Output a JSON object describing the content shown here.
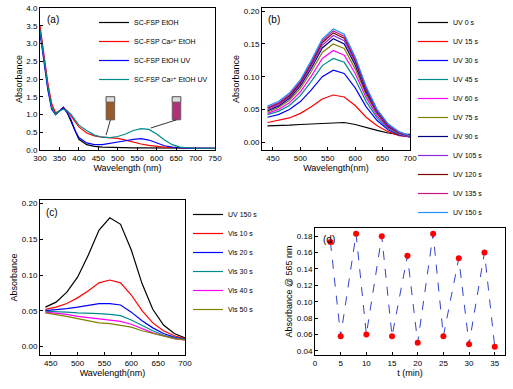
{
  "chart_data": [
    {
      "type": "line",
      "title": "(a)",
      "x_label": "Wavelength (nm)",
      "y_label": "Absorbance",
      "x": [
        300,
        310,
        320,
        330,
        340,
        350,
        360,
        370,
        380,
        390,
        400,
        420,
        440,
        460,
        480,
        500,
        520,
        540,
        560,
        580,
        600,
        620,
        640,
        660,
        680,
        700,
        750
      ],
      "series": [
        {
          "name": "SC-FSP EtOH",
          "color": "#000000",
          "values": [
            3.4,
            2.6,
            1.8,
            1.2,
            1.0,
            1.1,
            1.2,
            1.05,
            0.8,
            0.5,
            0.3,
            0.15,
            0.1,
            0.08,
            0.07,
            0.07,
            0.07,
            0.06,
            0.06,
            0.06,
            0.05,
            0.05,
            0.05,
            0.05,
            0.05,
            0.05,
            0.05
          ]
        },
        {
          "name": "SC-FSP Ca²⁺ EtOH",
          "color": "#ff0000",
          "values": [
            3.5,
            2.7,
            1.9,
            1.3,
            1.05,
            1.1,
            1.2,
            1.1,
            0.95,
            0.8,
            0.65,
            0.48,
            0.4,
            0.36,
            0.35,
            0.33,
            0.28,
            0.22,
            0.17,
            0.13,
            0.1,
            0.08,
            0.07,
            0.06,
            0.06,
            0.05,
            0.05
          ]
        },
        {
          "name": "SC-FSP EtOH UV",
          "color": "#0000ff",
          "values": [
            3.3,
            2.5,
            1.7,
            1.15,
            1.0,
            1.1,
            1.2,
            1.05,
            0.85,
            0.55,
            0.35,
            0.2,
            0.15,
            0.15,
            0.18,
            0.22,
            0.26,
            0.3,
            0.32,
            0.28,
            0.2,
            0.12,
            0.08,
            0.06,
            0.05,
            0.05,
            0.05
          ]
        },
        {
          "name": "SC-FSP Ca²⁺ EtOH UV",
          "color": "#008b8b",
          "values": [
            3.4,
            2.6,
            1.8,
            1.2,
            1.0,
            1.1,
            1.15,
            1.1,
            1.0,
            0.85,
            0.7,
            0.55,
            0.42,
            0.36,
            0.35,
            0.38,
            0.45,
            0.55,
            0.6,
            0.58,
            0.45,
            0.28,
            0.15,
            0.08,
            0.06,
            0.05,
            0.05
          ]
        }
      ],
      "xlim": [
        300,
        750
      ],
      "xticks": [
        300,
        350,
        400,
        450,
        500,
        550,
        600,
        650,
        700,
        750
      ],
      "ylim": [
        0,
        4.0
      ],
      "yticks": [
        {
          "value": 0,
          "label": "0.0"
        },
        0.5,
        {
          "value": 1,
          "label": "1.0"
        },
        1.5,
        {
          "value": 2,
          "label": "2.0"
        },
        2.5,
        {
          "value": 3,
          "label": "3.0"
        },
        3.5,
        {
          "value": 4,
          "label": "4.0"
        }
      ],
      "grid": false,
      "legend": "upper right"
    },
    {
      "type": "line",
      "title": "(b)",
      "x_label": "Wavelength(nm)",
      "y_label": "Absorbance",
      "x": [
        440,
        460,
        480,
        500,
        520,
        540,
        560,
        580,
        600,
        620,
        640,
        660,
        680,
        700
      ],
      "series": [
        {
          "name": "UV 0 s",
          "color": "#000000",
          "values": [
            0.025,
            0.025,
            0.026,
            0.027,
            0.028,
            0.029,
            0.03,
            0.03,
            0.027,
            0.022,
            0.018,
            0.014,
            0.012,
            0.012
          ]
        },
        {
          "name": "UV 15 s",
          "color": "#ff0000",
          "values": [
            0.03,
            0.033,
            0.037,
            0.044,
            0.054,
            0.066,
            0.072,
            0.069,
            0.056,
            0.038,
            0.025,
            0.016,
            0.01,
            0.008
          ]
        },
        {
          "name": "UV 30 s",
          "color": "#0000ff",
          "values": [
            0.038,
            0.042,
            0.05,
            0.062,
            0.08,
            0.1,
            0.11,
            0.105,
            0.083,
            0.054,
            0.033,
            0.019,
            0.011,
            0.008
          ]
        },
        {
          "name": "UV 45 s",
          "color": "#008b8b",
          "values": [
            0.042,
            0.047,
            0.056,
            0.071,
            0.093,
            0.117,
            0.128,
            0.122,
            0.096,
            0.062,
            0.037,
            0.021,
            0.012,
            0.008
          ]
        },
        {
          "name": "UV 60 s",
          "color": "#ff00ff",
          "values": [
            0.044,
            0.05,
            0.06,
            0.077,
            0.101,
            0.128,
            0.14,
            0.133,
            0.105,
            0.068,
            0.04,
            0.022,
            0.013,
            0.008
          ]
        },
        {
          "name": "UV 75 s",
          "color": "#808000",
          "values": [
            0.046,
            0.053,
            0.064,
            0.082,
            0.108,
            0.137,
            0.15,
            0.143,
            0.112,
            0.072,
            0.043,
            0.023,
            0.013,
            0.009
          ]
        },
        {
          "name": "UV 90 s",
          "color": "#000080",
          "values": [
            0.048,
            0.055,
            0.067,
            0.086,
            0.113,
            0.144,
            0.158,
            0.15,
            0.118,
            0.076,
            0.045,
            0.024,
            0.014,
            0.009
          ]
        },
        {
          "name": "UV 105 s",
          "color": "#8a2be2",
          "values": [
            0.05,
            0.057,
            0.069,
            0.089,
            0.117,
            0.148,
            0.163,
            0.155,
            0.122,
            0.079,
            0.046,
            0.025,
            0.014,
            0.009
          ]
        },
        {
          "name": "UV 120 s",
          "color": "#800000",
          "values": [
            0.052,
            0.059,
            0.071,
            0.091,
            0.12,
            0.152,
            0.167,
            0.159,
            0.125,
            0.081,
            0.048,
            0.026,
            0.015,
            0.01
          ]
        },
        {
          "name": "UV 135 s",
          "color": "#c71585",
          "values": [
            0.053,
            0.06,
            0.073,
            0.093,
            0.122,
            0.155,
            0.17,
            0.162,
            0.128,
            0.083,
            0.049,
            0.027,
            0.015,
            0.01
          ]
        },
        {
          "name": "UV 150 s",
          "color": "#1e90ff",
          "values": [
            0.055,
            0.062,
            0.075,
            0.095,
            0.125,
            0.158,
            0.173,
            0.165,
            0.13,
            0.085,
            0.05,
            0.028,
            0.016,
            0.01
          ]
        }
      ],
      "xlim": [
        430,
        700
      ],
      "xticks": [
        450,
        500,
        550,
        600,
        650,
        700
      ],
      "ylim": [
        -0.012,
        0.205
      ],
      "yticks": [
        {
          "value": 0,
          "label": "0.00"
        },
        0.05,
        {
          "value": 0.1,
          "label": "0.10"
        },
        0.15,
        {
          "value": 0.2,
          "label": "0.20"
        }
      ],
      "grid": false,
      "legend": "right"
    },
    {
      "type": "line",
      "title": "(c)",
      "x_label": "Wavelength(nm)",
      "y_label": "Absorbance",
      "x": [
        440,
        460,
        480,
        500,
        520,
        540,
        560,
        580,
        600,
        620,
        640,
        660,
        680,
        700
      ],
      "series": [
        {
          "name": "UV 150 s",
          "color": "#000000",
          "values": [
            0.055,
            0.062,
            0.076,
            0.097,
            0.128,
            0.163,
            0.18,
            0.171,
            0.135,
            0.088,
            0.052,
            0.03,
            0.018,
            0.012
          ]
        },
        {
          "name": "Vis 10 s",
          "color": "#ff0000",
          "values": [
            0.052,
            0.055,
            0.06,
            0.068,
            0.078,
            0.089,
            0.093,
            0.089,
            0.072,
            0.05,
            0.033,
            0.022,
            0.015,
            0.011
          ]
        },
        {
          "name": "Vis 20 s",
          "color": "#0000ff",
          "values": [
            0.05,
            0.051,
            0.053,
            0.055,
            0.058,
            0.06,
            0.06,
            0.058,
            0.048,
            0.036,
            0.026,
            0.018,
            0.013,
            0.01
          ]
        },
        {
          "name": "Vis 30 s",
          "color": "#008b8b",
          "values": [
            0.049,
            0.049,
            0.048,
            0.047,
            0.047,
            0.046,
            0.045,
            0.043,
            0.037,
            0.029,
            0.022,
            0.016,
            0.012,
            0.01
          ]
        },
        {
          "name": "Vis 40 s",
          "color": "#ff00ff",
          "values": [
            0.048,
            0.047,
            0.045,
            0.042,
            0.04,
            0.038,
            0.037,
            0.035,
            0.031,
            0.025,
            0.019,
            0.015,
            0.011,
            0.009
          ]
        },
        {
          "name": "Vis 50 s",
          "color": "#808000",
          "values": [
            0.047,
            0.045,
            0.042,
            0.039,
            0.036,
            0.033,
            0.032,
            0.03,
            0.027,
            0.022,
            0.018,
            0.014,
            0.011,
            0.009
          ]
        }
      ],
      "xlim": [
        430,
        700
      ],
      "xticks": [
        450,
        500,
        550,
        600,
        650,
        700
      ],
      "ylim": [
        -0.012,
        0.205
      ],
      "yticks": [
        {
          "value": 0,
          "label": "0.00"
        },
        0.05,
        {
          "value": 0.1,
          "label": "0.10"
        },
        0.15,
        {
          "value": 0.2,
          "label": "0.20"
        }
      ],
      "grid": false,
      "legend": "right"
    },
    {
      "type": "line",
      "title": "(d)",
      "x_label": "t (min)",
      "y_label": "Absorbance @ 565 nm",
      "x": [
        3,
        5,
        8,
        10,
        13,
        15,
        18,
        20,
        23,
        25,
        28,
        30,
        33,
        35
      ],
      "values": [
        0.173,
        0.058,
        0.183,
        0.06,
        0.18,
        0.058,
        0.156,
        0.05,
        0.183,
        0.058,
        0.153,
        0.048,
        0.16,
        0.045
      ],
      "color": "#3344cc",
      "colors": [
        "#ff0000",
        "#ff0000",
        "#ff0000",
        "#ff0000",
        "#ff0000",
        "#ff0000",
        "#ff0000",
        "#ff0000",
        "#ff0000",
        "#ff0000",
        "#ff0000",
        "#ff0000",
        "#ff0000",
        "#ff0000"
      ],
      "marker": "circle",
      "line_style": "dash",
      "xlim": [
        0,
        37
      ],
      "xticks": [
        0,
        5,
        10,
        15,
        20,
        25,
        30,
        35
      ],
      "ylim": [
        0.035,
        0.19
      ],
      "yticks": [
        0.04,
        0.06,
        0.08,
        {
          "value": 0.1,
          "label": "0.10"
        },
        0.12,
        0.14,
        0.16,
        0.18
      ],
      "grid": false
    }
  ]
}
